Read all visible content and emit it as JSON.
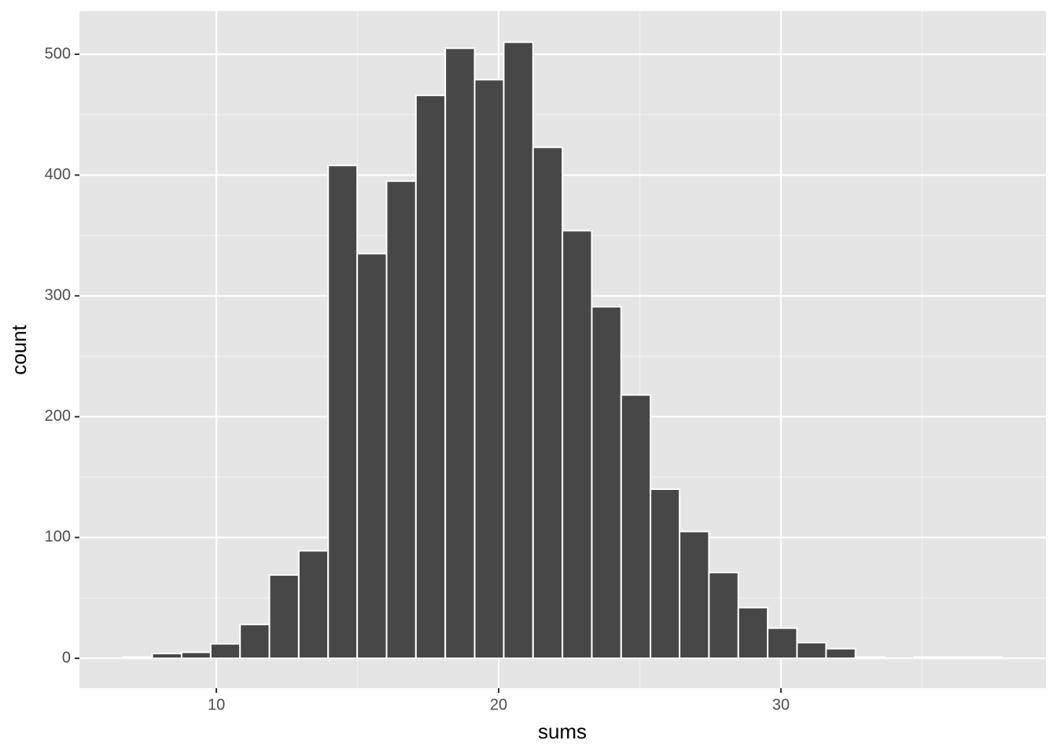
{
  "chart_data": {
    "type": "histogram",
    "x_label": "sums",
    "y_label": "count",
    "bins": [
      6.69,
      7.73,
      8.77,
      9.8,
      10.84,
      11.88,
      12.92,
      13.96,
      14.99,
      16.03,
      17.07,
      18.11,
      19.15,
      20.18,
      21.22,
      22.26,
      23.3,
      24.34,
      25.38,
      26.41,
      27.45,
      28.49,
      29.53,
      30.57,
      31.6,
      32.64,
      33.68,
      34.72,
      35.76,
      36.79,
      37.83
    ],
    "counts": [
      1,
      4,
      5,
      12,
      28,
      69,
      89,
      408,
      335,
      395,
      466,
      505,
      479,
      510,
      423,
      354,
      291,
      218,
      140,
      105,
      71,
      42,
      25,
      13,
      8,
      1,
      0,
      1,
      1,
      1
    ],
    "color": "#474747",
    "xlim": [
      5.15,
      39.39
    ],
    "ylim": [
      -24.7,
      535.8
    ],
    "xticks": [
      10,
      20,
      30
    ],
    "yticks": [
      0,
      100,
      200,
      300,
      400,
      500
    ],
    "grid": true
  }
}
